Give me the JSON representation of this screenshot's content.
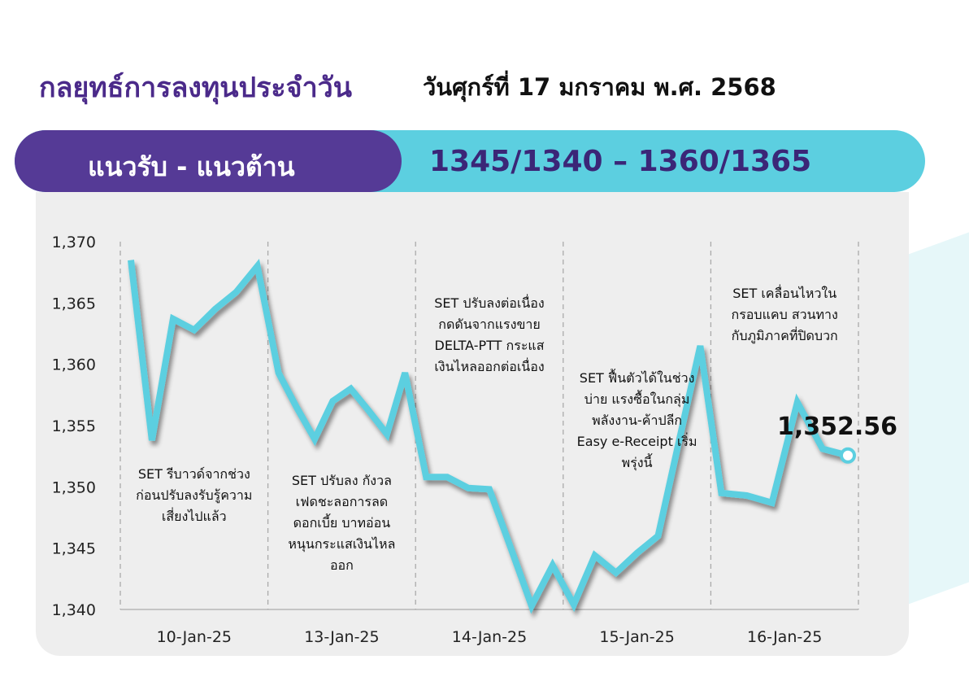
{
  "header": {
    "title": "กลยุทธ์การลงทุนประจำวัน",
    "date": "วันศุกร์ที่ 17 มกราคม พ.ศ. 2568"
  },
  "levels": {
    "label": "แนวรับ - แนวต้าน",
    "value": "1345/1340 – 1360/1365"
  },
  "colors": {
    "purple": "#553a96",
    "cyan": "#5ccfe0",
    "line": "#5ccfe0",
    "panel": "#eeeeee"
  },
  "chart_data": {
    "type": "line",
    "title": "",
    "xlabel": "",
    "ylabel": "",
    "ylim": [
      1340,
      1370
    ],
    "yticks": [
      1370,
      1365,
      1360,
      1355,
      1350,
      1345,
      1340
    ],
    "ytick_labels": [
      "1,370",
      "1,365",
      "1,360",
      "1,355",
      "1,350",
      "1,345",
      "1,340"
    ],
    "x_categories": [
      "10-Jan-25",
      "13-Jan-25",
      "14-Jan-25",
      "15-Jan-25",
      "16-Jan-25"
    ],
    "grid": "vertical dashed separators",
    "series": [
      {
        "name": "",
        "days": [
          {
            "date": "10-Jan-25",
            "values": [
              1368.5,
              1353.8,
              1363.7,
              1362.8,
              1364.5,
              1365.9,
              1368.0
            ]
          },
          {
            "date": "13-Jan-25",
            "values": [
              1359.3,
              1356.5,
              1353.9,
              1357.0,
              1358.0,
              1356.2,
              1354.3,
              1359.3
            ]
          },
          {
            "date": "14-Jan-25",
            "values": [
              1350.8,
              1350.8,
              1349.9,
              1349.8,
              1345.1,
              1340.3,
              1343.6
            ]
          },
          {
            "date": "15-Jan-25",
            "values": [
              1340.4,
              1344.4,
              1343.0,
              1344.6,
              1346.0,
              1353.8,
              1361.5
            ]
          },
          {
            "date": "16-Jan-25",
            "values": [
              1349.5,
              1349.3,
              1348.7,
              1356.9,
              1353.1,
              1352.56
            ]
          }
        ]
      }
    ],
    "last_value_label": "1,352.56",
    "annotations": [
      {
        "date": "10-Jan-25",
        "lines": [
          "SET รีบาวด์จากช่วง",
          "ก่อนปรับลงรับรู้ความ",
          "เสี่ยงไปแล้ว"
        ]
      },
      {
        "date": "13-Jan-25",
        "lines": [
          "SET ปรับลง กังวล",
          "เฟดชะลอการลด",
          "ดอกเบี้ย บาทอ่อน",
          "หนุนกระแสเงินไหล",
          "ออก"
        ]
      },
      {
        "date": "14-Jan-25",
        "lines": [
          "SET ปรับลงต่อเนื่อง",
          "กดดันจากแรงขาย",
          "DELTA-PTT กระแส",
          "เงินไหลออกต่อเนื่อง"
        ]
      },
      {
        "date": "15-Jan-25",
        "lines": [
          "SET ฟื้นตัวได้ในช่วง",
          "บ่าย แรงซื้อในกลุ่ม",
          "พลังงาน-ค้าปลีก",
          "Easy e-Receipt เริ่ม",
          "พรุ่งนี้"
        ]
      },
      {
        "date": "16-Jan-25",
        "lines": [
          "SET เคลื่อนไหวใน",
          "กรอบแคบ สวนทาง",
          "กับภูมิภาคที่ปิดบวก"
        ]
      }
    ]
  }
}
